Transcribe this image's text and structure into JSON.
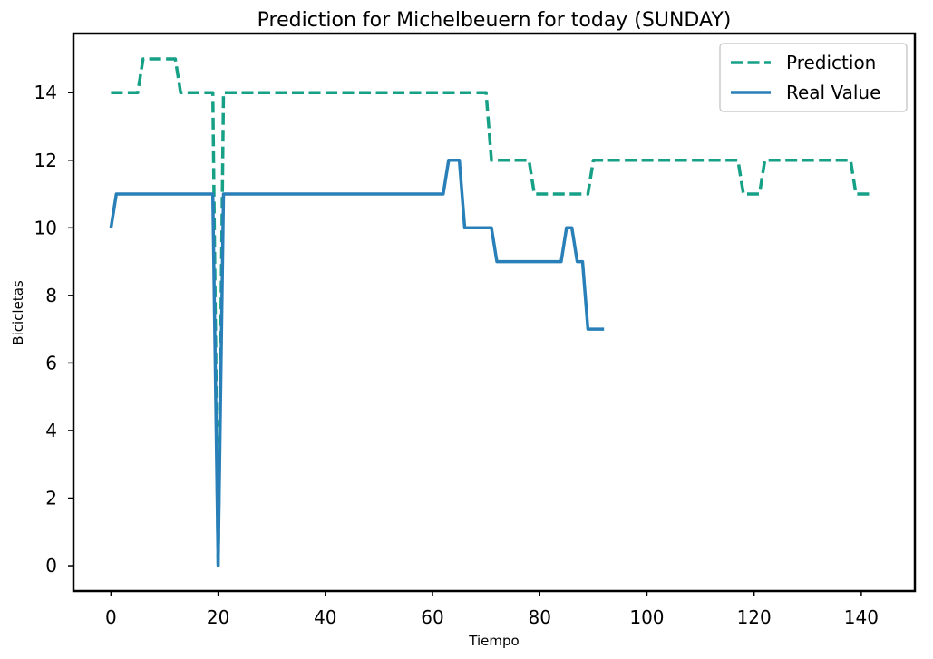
{
  "chart_data": {
    "type": "line",
    "title": "Prediction for Michelbeuern for today (SUNDAY)",
    "xlabel": "Tiempo",
    "ylabel": "Bicicletas",
    "xlim": [
      -7,
      150
    ],
    "ylim": [
      -0.75,
      15.75
    ],
    "xticks": [
      0,
      20,
      40,
      60,
      80,
      100,
      120,
      140
    ],
    "yticks": [
      0,
      2,
      4,
      6,
      8,
      10,
      12,
      14
    ],
    "grid": false,
    "legend": "top-right",
    "series": [
      {
        "name": "Prediction",
        "style": "dashed",
        "color": "#16a085",
        "x": [
          0,
          5,
          6,
          12,
          13,
          19,
          20,
          21,
          70,
          71,
          78,
          79,
          89,
          90,
          117,
          118,
          121,
          122,
          138,
          139,
          142
        ],
        "y": [
          14,
          14,
          15,
          15,
          14,
          14,
          0,
          14,
          14,
          12,
          12,
          11,
          11,
          12,
          12,
          11,
          11,
          12,
          12,
          11,
          11
        ]
      },
      {
        "name": "Real Value",
        "style": "solid",
        "color": "#2980b9",
        "x": [
          0,
          1,
          19,
          20,
          21,
          62,
          63,
          65,
          66,
          71,
          72,
          84,
          85,
          86,
          87,
          88,
          89,
          92
        ],
        "y": [
          10,
          11,
          11,
          0,
          11,
          11,
          12,
          12,
          10,
          10,
          9,
          9,
          10,
          10,
          9,
          9,
          7,
          7
        ]
      }
    ]
  }
}
